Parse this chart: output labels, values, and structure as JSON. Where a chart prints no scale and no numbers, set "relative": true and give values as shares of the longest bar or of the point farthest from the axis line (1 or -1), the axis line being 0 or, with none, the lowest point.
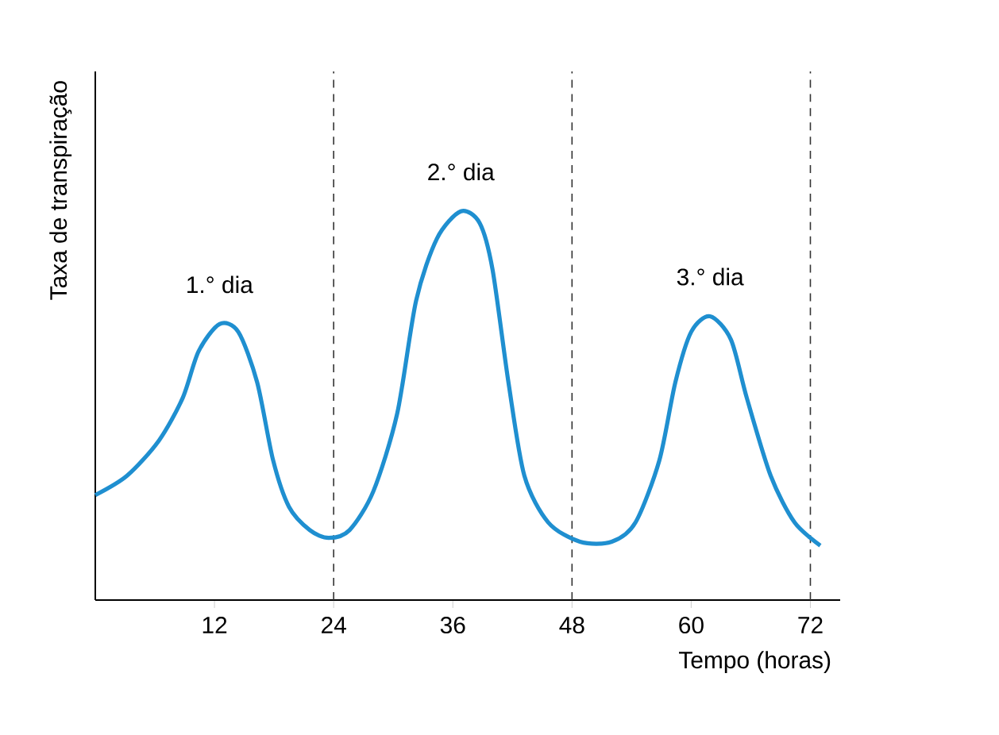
{
  "chart_data": {
    "type": "line",
    "relative": true,
    "xlabel": "Tempo (horas)",
    "ylabel": "Taxa de transpiração",
    "xlim": [
      0,
      75
    ],
    "xticks": [
      12,
      24,
      36,
      48,
      60,
      72
    ],
    "x": [
      0,
      3.2,
      6.4,
      8.8,
      10.4,
      12.5,
      14.4,
      16.3,
      17.9,
      19.5,
      21.6,
      23.5,
      25.6,
      28,
      30.4,
      32.3,
      34.4,
      36.8,
      38.7,
      40,
      41.6,
      43.2,
      45.6,
      48.8,
      52,
      54.4,
      56.8,
      58.4,
      60,
      61.9,
      64,
      65.6,
      68,
      70.4,
      73
    ],
    "series": [
      {
        "color": "#1f8fd0",
        "values": [
          0.27,
          0.32,
          0.41,
          0.52,
          0.64,
          0.71,
          0.69,
          0.56,
          0.36,
          0.24,
          0.18,
          0.16,
          0.18,
          0.28,
          0.48,
          0.77,
          0.93,
          1.0,
          0.97,
          0.85,
          0.56,
          0.32,
          0.2,
          0.15,
          0.15,
          0.2,
          0.36,
          0.56,
          0.69,
          0.73,
          0.67,
          0.52,
          0.32,
          0.2,
          0.14
        ]
      }
    ],
    "ref_lines": [
      {
        "axis": "x",
        "value": 24,
        "line_style": "dashed",
        "color": "#333333"
      },
      {
        "axis": "x",
        "value": 48,
        "line_style": "dashed",
        "color": "#333333"
      },
      {
        "axis": "x",
        "value": 72,
        "line_style": "dashed",
        "color": "#333333"
      }
    ],
    "annotations": [
      {
        "text": "1.° dia",
        "x": 12.5,
        "y": 0.71
      },
      {
        "text": "2.° dia",
        "x": 36.8,
        "y": 1.0
      },
      {
        "text": "3.° dia",
        "x": 61.9,
        "y": 0.73
      }
    ],
    "grid": false
  }
}
